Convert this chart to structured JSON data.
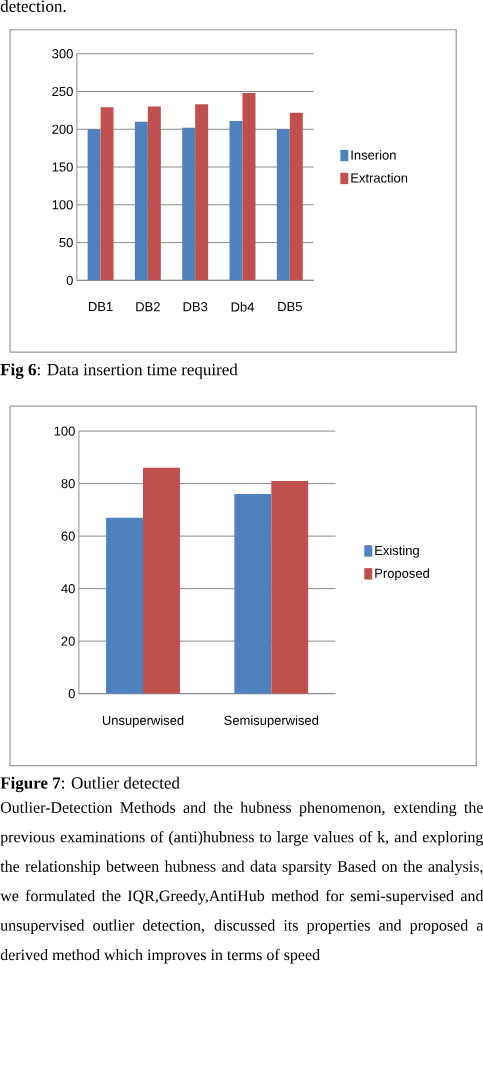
{
  "chart_data": [
    {
      "type": "bar",
      "categories": [
        "DB1",
        "DB2",
        "DB3",
        "Db4",
        "DB5"
      ],
      "series": [
        {
          "name": "Inserion",
          "color": "#4f81bd",
          "values": [
            200,
            210,
            202,
            211,
            200
          ]
        },
        {
          "name": "Extraction",
          "color": "#c0504d",
          "values": [
            229,
            230,
            233,
            248,
            222
          ]
        }
      ],
      "ylim": [
        0,
        300
      ],
      "yticks": [
        0,
        50,
        100,
        150,
        200,
        250,
        300
      ],
      "grid": "y",
      "legend": "right",
      "annotations": [
        "detection.",
        "**Fig 6**: Data insertion time required"
      ]
    },
    {
      "type": "bar",
      "categories": [
        "Unsuperwised",
        "Semisuperwised"
      ],
      "series": [
        {
          "name": "Existing",
          "color": "#4f81bd",
          "values": [
            67,
            76
          ]
        },
        {
          "name": "Proposed",
          "color": "#c0504d",
          "values": [
            86,
            81
          ]
        }
      ],
      "ylim": [
        0,
        100
      ],
      "yticks": [
        0,
        20,
        40,
        60,
        80,
        100
      ],
      "grid": "y",
      "legend": "right",
      "annotations": [
        "**Figure 7**: Outlier detected",
        "Outlier-Detection Methods and the hubness phenomenon, extending the previous examinations of (anti)hubness to large values of k, and exploring the relationship between hubness and data sparsity Based on the analysis, we formulated the IQR,Greedy,AntiHub method for semi-supervised and unsupervised outlier detection, discussed its properties and proposed a derived method which improves in terms of speed"
      ]
    }
  ]
}
